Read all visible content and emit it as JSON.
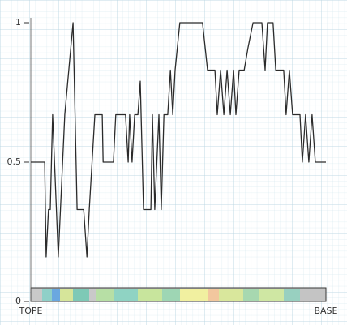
{
  "chart_data": {
    "type": "line",
    "x": [
      0,
      4.7,
      5.2,
      6.0,
      6.6,
      7.4,
      9.3,
      11.5,
      14.3,
      15.7,
      17.9,
      19.0,
      19.8,
      21.7,
      24.2,
      24.5,
      28.0,
      28.8,
      32.1,
      33.0,
      33.5,
      34.3,
      35.2,
      36.3,
      37.1,
      38.2,
      40.7,
      41.2,
      42.0,
      43.4,
      44.2,
      45.1,
      46.4,
      47.3,
      48.1,
      48.9,
      50.5,
      58.2,
      59.9,
      62.4,
      63.2,
      64.3,
      65.4,
      66.5,
      67.6,
      68.7,
      69.5,
      70.6,
      72.3,
      73.6,
      75.3,
      78.3,
      79.4,
      80.2,
      82.1,
      83.0,
      85.7,
      86.5,
      87.6,
      88.7,
      91.2,
      92.0,
      93.1,
      94.2,
      95.3,
      96.4,
      100
    ],
    "values": [
      0.5,
      0.5,
      0.16,
      0.33,
      0.33,
      0.67,
      0.16,
      0.67,
      1,
      0.33,
      0.33,
      0.16,
      0.33,
      0.67,
      0.67,
      0.5,
      0.5,
      0.67,
      0.67,
      0.5,
      0.67,
      0.5,
      0.67,
      0.67,
      0.79,
      0.33,
      0.33,
      0.67,
      0.33,
      0.67,
      0.33,
      0.67,
      0.67,
      0.83,
      0.67,
      0.83,
      1,
      1,
      0.83,
      0.83,
      0.67,
      0.83,
      0.67,
      0.83,
      0.67,
      0.83,
      0.67,
      0.83,
      0.83,
      0.91,
      1,
      1,
      0.83,
      1,
      1,
      0.83,
      0.83,
      0.67,
      0.83,
      0.67,
      0.67,
      0.5,
      0.67,
      0.5,
      0.67,
      0.5,
      0.5
    ],
    "color": "#2b2b2b",
    "xlim": [
      0,
      100
    ],
    "ylim": [
      0,
      1
    ],
    "yticks": [
      0,
      0.5,
      1
    ],
    "start_label": "TOPE",
    "end_label": "BASE"
  }
}
